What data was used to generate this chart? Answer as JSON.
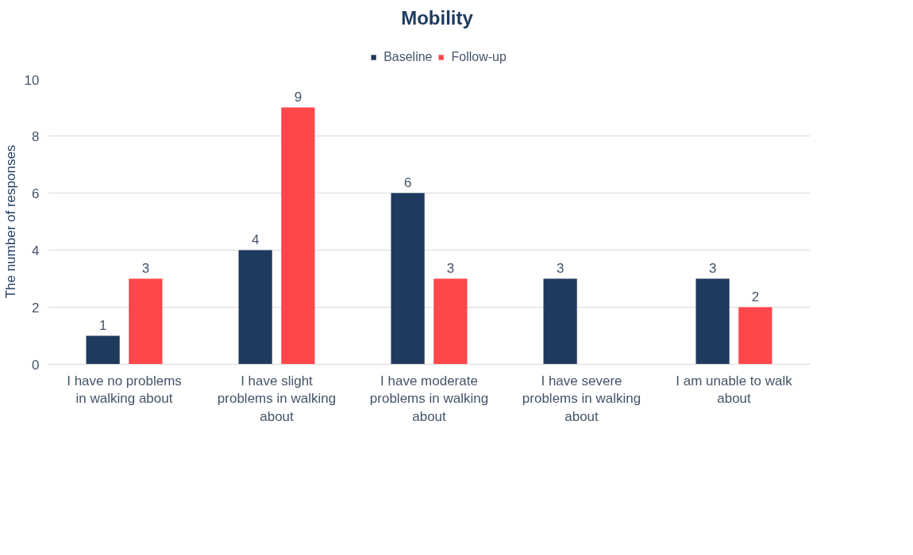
{
  "chart_data": {
    "type": "bar",
    "title": "Mobility",
    "ylabel": "The number of responses",
    "categories": [
      "I have no problems in walking about",
      "I have slight problems in walking about",
      "I have moderate problems in walking about",
      "I have severe problems in walking about",
      "I am unable to walk about"
    ],
    "series": [
      {
        "name": "Baseline",
        "color": "#1f3a5f",
        "values": [
          1,
          4,
          6,
          3,
          3
        ]
      },
      {
        "name": "Follow-up",
        "color": "#ff474c",
        "values": [
          3,
          9,
          3,
          null,
          2
        ]
      }
    ],
    "ylim": [
      0,
      10
    ],
    "yticks": [
      0,
      2,
      4,
      6,
      8,
      10
    ],
    "grid": "y",
    "legend": "top",
    "data_labels": true
  }
}
